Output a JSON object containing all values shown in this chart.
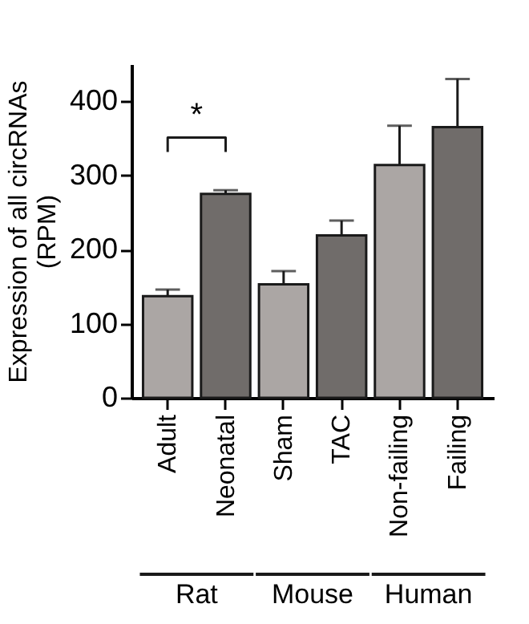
{
  "chart_data": {
    "type": "bar",
    "ylabel": "Expression of all circRNAs\n(RPM)",
    "categories": [
      "Adult",
      "Neonatal",
      "Sham",
      "TAC",
      "Non-failing",
      "Failing"
    ],
    "values": [
      137,
      275,
      153,
      219,
      314,
      365
    ],
    "errors": [
      [
        137,
        146
      ],
      [
        275,
        280
      ],
      [
        153,
        171
      ],
      [
        219,
        239
      ],
      [
        314,
        367
      ],
      [
        365,
        430
      ]
    ],
    "colors": [
      "#aba6a4",
      "#706c6a",
      "#aba6a4",
      "#706c6a",
      "#aba6a4",
      "#706c6a"
    ],
    "ylim": [
      0,
      450
    ],
    "yticks": [
      0,
      100,
      200,
      300,
      400
    ],
    "grid": false,
    "annotations": [
      "*",
      "Rat",
      "Mouse",
      "Human"
    ]
  }
}
